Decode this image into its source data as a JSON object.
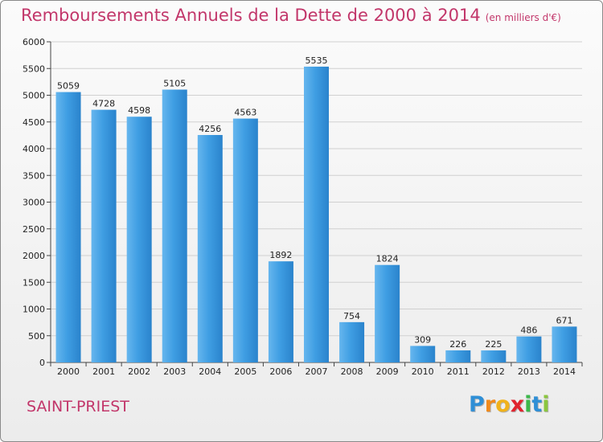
{
  "header": {
    "title": "Remboursements Annuels de la Dette de 2000 à 2014",
    "subtitle": "(en milliers d'€)"
  },
  "footer": {
    "commune": "SAINT-PRIEST",
    "logo_letters": [
      "P",
      "r",
      "o",
      "x",
      "i",
      "t",
      "i"
    ],
    "logo_colors": [
      "#2f8fd6",
      "#f08a1c",
      "#f0b21c",
      "#e0232e",
      "#3cb84a",
      "#2f8fd6",
      "#8bc63f"
    ]
  },
  "chart_data": {
    "type": "bar",
    "title": "Remboursements Annuels de la Dette de 2000 à 2014",
    "subtitle": "(en milliers d'€)",
    "categories": [
      "2000",
      "2001",
      "2002",
      "2003",
      "2004",
      "2005",
      "2006",
      "2007",
      "2008",
      "2009",
      "2010",
      "2011",
      "2012",
      "2013",
      "2014"
    ],
    "values": [
      5059,
      4728,
      4598,
      5105,
      4256,
      4563,
      1892,
      5535,
      754,
      1824,
      309,
      226,
      225,
      486,
      671
    ],
    "ylim": [
      0,
      6000
    ],
    "yticks": [
      0,
      500,
      1000,
      1500,
      2000,
      2500,
      3000,
      3500,
      4000,
      4500,
      5000,
      5500,
      6000
    ],
    "grid": true,
    "bar_color": "#3f9ee3",
    "bar_color_light": "#66b6ee",
    "bar_color_dark": "#2a83cc"
  }
}
